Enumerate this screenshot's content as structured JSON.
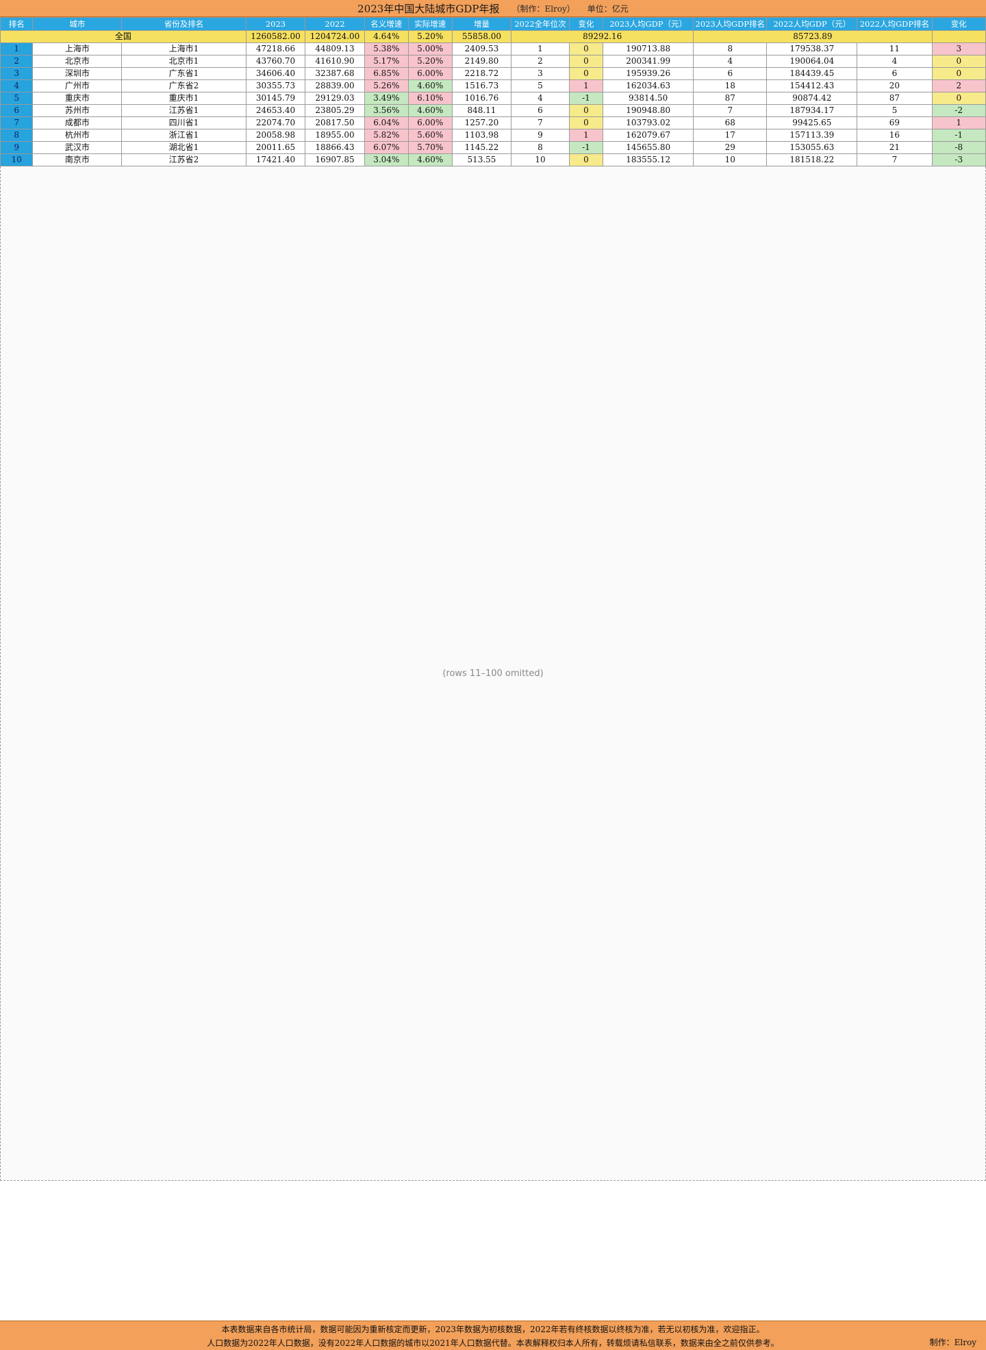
{
  "title": "2023年中国大陆城市GDP年报",
  "maker": "（制作：Elroy）",
  "unit": "单位：亿元",
  "columns": [
    "排名",
    "城市",
    "省份及排名",
    "2023",
    "2022",
    "名义增速",
    "实际增速",
    "增量",
    "2022全年位次",
    "变化",
    "2023人均GDP（元）",
    "2023人均GDP排名",
    "2022人均GDP（元）",
    "2022人均GDP排名",
    "变化"
  ],
  "nation": {
    "label": "全国",
    "gdp2023": "1260582.00",
    "gdp2022": "1204724.00",
    "nominal": "4.64%",
    "real": "5.20%",
    "increase": "55858.00",
    "pc2023": "89292.16",
    "pc2022": "85723.89"
  },
  "rows": [
    {
      "rank": "1",
      "city": "上海市",
      "prov": "上海市1",
      "gdp2023": "47218.66",
      "gdp2022": "44809.13",
      "nominal": "5.38%",
      "real": "5.00%",
      "inc": "2409.53",
      "pos2022": "1",
      "chg": "0",
      "pc2023": "190713.88",
      "pcr2023": "8",
      "pc2022": "179538.37",
      "pcr2022": "11",
      "pcchg": "3"
    },
    {
      "rank": "2",
      "city": "北京市",
      "prov": "北京市1",
      "gdp2023": "43760.70",
      "gdp2022": "41610.90",
      "nominal": "5.17%",
      "real": "5.20%",
      "inc": "2149.80",
      "pos2022": "2",
      "chg": "0",
      "pc2023": "200341.99",
      "pcr2023": "4",
      "pc2022": "190064.04",
      "pcr2022": "4",
      "pcchg": "0"
    },
    {
      "rank": "3",
      "city": "深圳市",
      "prov": "广东省1",
      "gdp2023": "34606.40",
      "gdp2022": "32387.68",
      "nominal": "6.85%",
      "real": "6.00%",
      "inc": "2218.72",
      "pos2022": "3",
      "chg": "0",
      "pc2023": "195939.26",
      "pcr2023": "6",
      "pc2022": "184439.45",
      "pcr2022": "6",
      "pcchg": "0"
    },
    {
      "rank": "4",
      "city": "广州市",
      "prov": "广东省2",
      "gdp2023": "30355.73",
      "gdp2022": "28839.00",
      "nominal": "5.26%",
      "real": "4.60%",
      "inc": "1516.73",
      "pos2022": "5",
      "chg": "1",
      "pc2023": "162034.63",
      "pcr2023": "18",
      "pc2022": "154412.43",
      "pcr2022": "20",
      "pcchg": "2"
    },
    {
      "rank": "5",
      "city": "重庆市",
      "prov": "重庆市1",
      "gdp2023": "30145.79",
      "gdp2022": "29129.03",
      "nominal": "3.49%",
      "real": "6.10%",
      "inc": "1016.76",
      "pos2022": "4",
      "chg": "-1",
      "pc2023": "93814.50",
      "pcr2023": "87",
      "pc2022": "90874.42",
      "pcr2022": "87",
      "pcchg": "0"
    },
    {
      "rank": "6",
      "city": "苏州市",
      "prov": "江苏省1",
      "gdp2023": "24653.40",
      "gdp2022": "23805.29",
      "nominal": "3.56%",
      "real": "4.60%",
      "inc": "848.11",
      "pos2022": "6",
      "chg": "0",
      "pc2023": "190948.80",
      "pcr2023": "7",
      "pc2022": "187934.17",
      "pcr2022": "5",
      "pcchg": "-2"
    },
    {
      "rank": "7",
      "city": "成都市",
      "prov": "四川省1",
      "gdp2023": "22074.70",
      "gdp2022": "20817.50",
      "nominal": "6.04%",
      "real": "6.00%",
      "inc": "1257.20",
      "pos2022": "7",
      "chg": "0",
      "pc2023": "103793.02",
      "pcr2023": "68",
      "pc2022": "99425.65",
      "pcr2022": "69",
      "pcchg": "1"
    },
    {
      "rank": "8",
      "city": "杭州市",
      "prov": "浙江省1",
      "gdp2023": "20058.98",
      "gdp2022": "18955.00",
      "nominal": "5.82%",
      "real": "5.60%",
      "inc": "1103.98",
      "pos2022": "9",
      "chg": "1",
      "pc2023": "162079.67",
      "pcr2023": "17",
      "pc2022": "157113.39",
      "pcr2022": "16",
      "pcchg": "-1"
    },
    {
      "rank": "9",
      "city": "武汉市",
      "prov": "湖北省1",
      "gdp2023": "20011.65",
      "gdp2022": "18866.43",
      "nominal": "6.07%",
      "real": "5.70%",
      "inc": "1145.22",
      "pos2022": "8",
      "chg": "-1",
      "pc2023": "145655.80",
      "pcr2023": "29",
      "pc2022": "153055.63",
      "pcr2022": "21",
      "pcchg": "-8"
    },
    {
      "rank": "10",
      "city": "南京市",
      "prov": "江苏省2",
      "gdp2023": "17421.40",
      "gdp2022": "16907.85",
      "nominal": "3.04%",
      "real": "4.60%",
      "inc": "513.55",
      "pos2022": "10",
      "chg": "0",
      "pc2023": "183555.12",
      "pcr2023": "10",
      "pc2022": "181518.22",
      "pcr2022": "7",
      "pcchg": "-3"
    }
  ],
  "footer": {
    "note1": "本表数据来自各市统计局，数据可能因为重新核定而更新，2023年数据为初核数据，2022年若有终核数据以终核为准，若无以初核为准，欢迎指正。",
    "note2": "人口数据为2022年人口数据，没有2022年人口数据的城市以2021年人口数据代替。本表解释权归本人所有，转载烦请私信联系，数据来由全之前仅供参考。",
    "credit": "制作：Elroy"
  }
}
